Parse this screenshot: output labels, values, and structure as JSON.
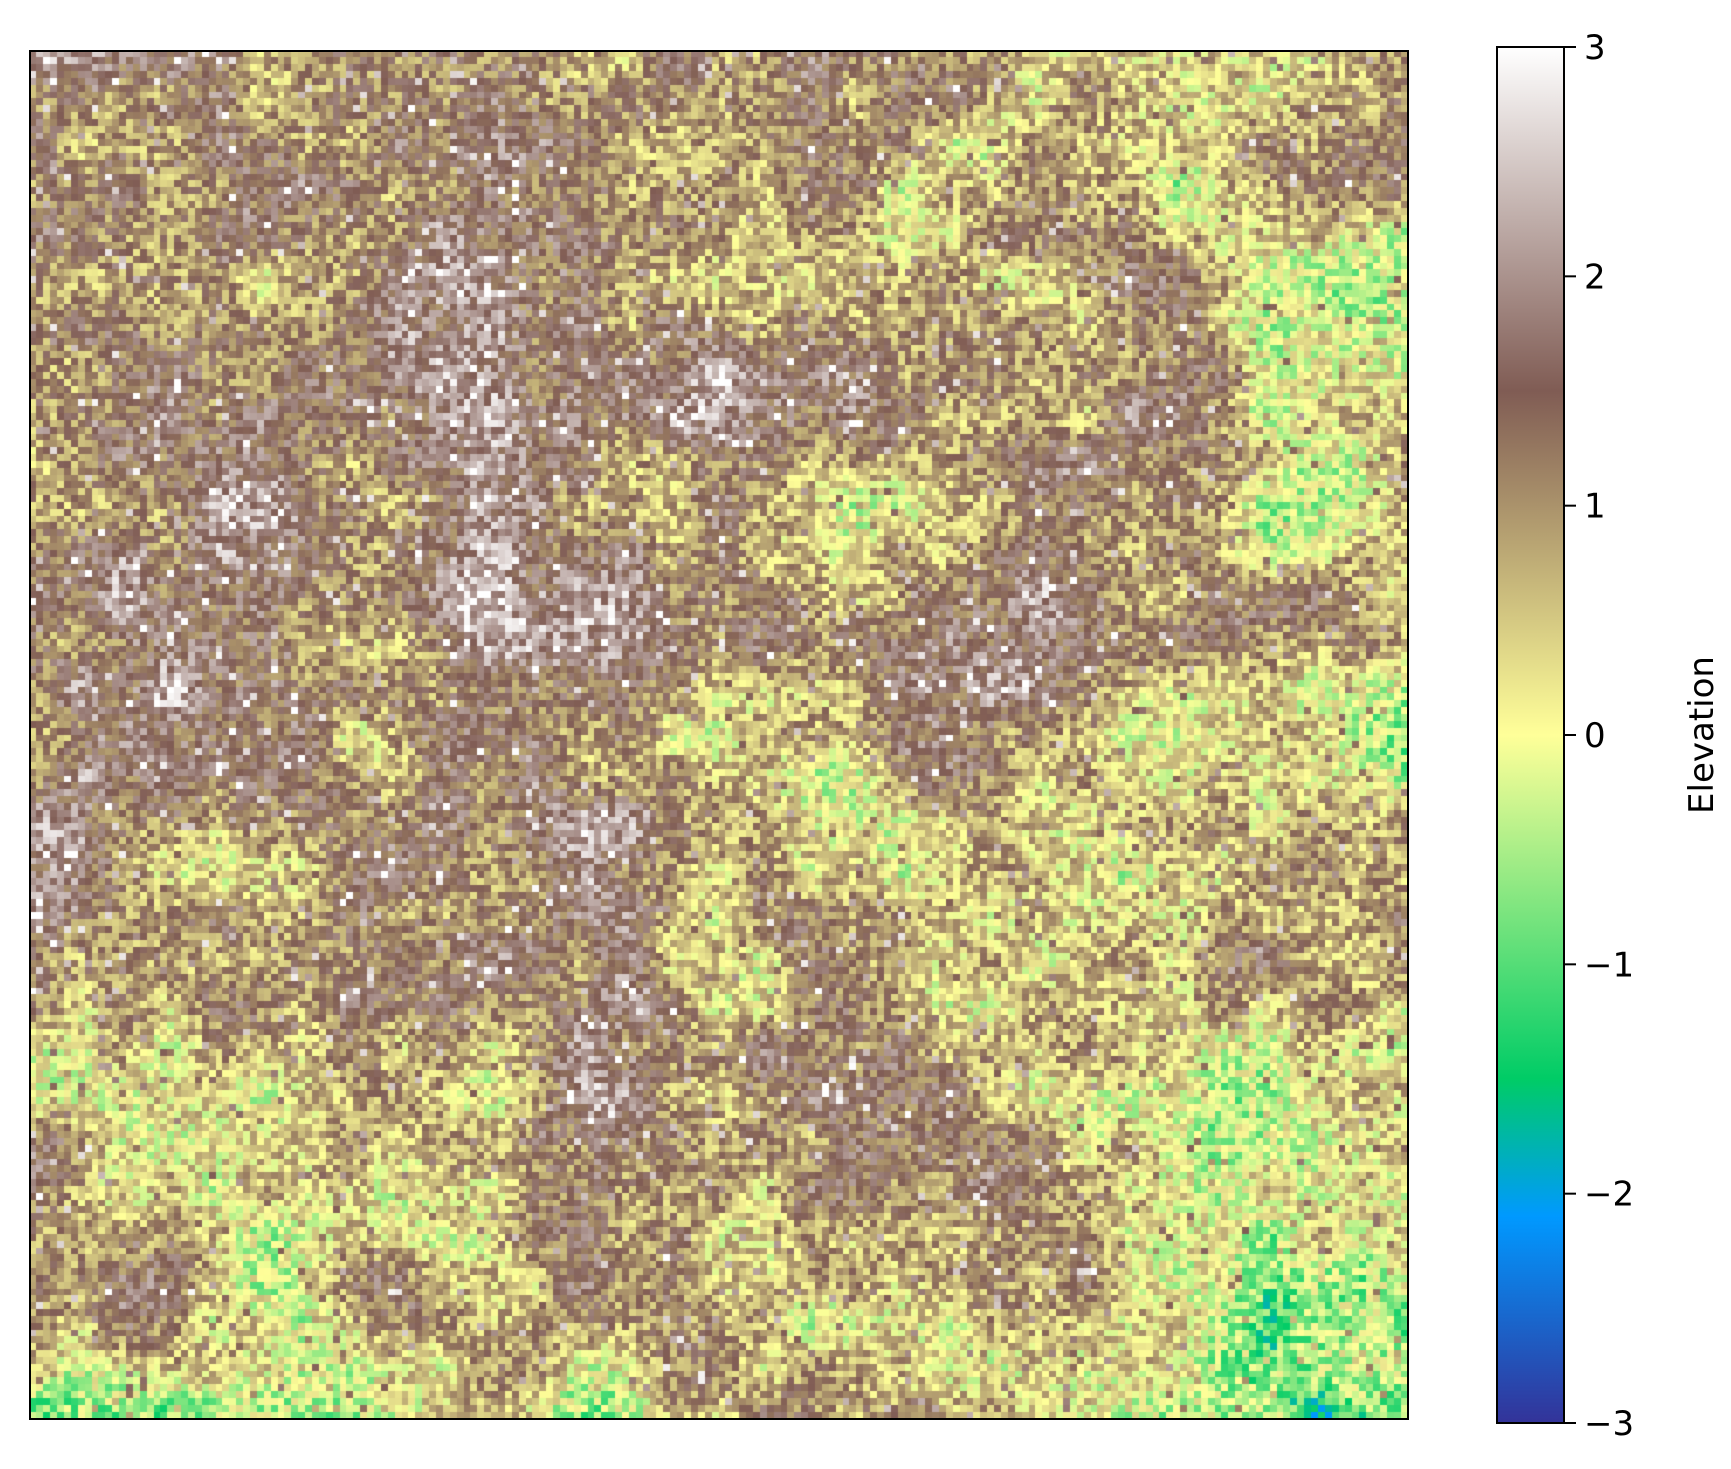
{
  "chart_data": {
    "type": "heatmap",
    "title": "",
    "xlabel": "",
    "ylabel": "",
    "colorbar": {
      "label": "Elevation",
      "colormap": "terrain",
      "vmin": -3,
      "vmax": 3,
      "ticks": [
        3,
        2,
        1,
        0,
        -1,
        -2,
        -3
      ],
      "tick_labels": [
        "3",
        "2",
        "1",
        "0",
        "−1",
        "−2",
        "−3"
      ]
    },
    "grid": {
      "rows": 200,
      "cols": 200,
      "note_values": "per-cell elevation field; predominantly positive (brown/white), with scattered low (green/blue) patches concentrated toward the right edge and the bottom"
    },
    "axes_ticks_visible": false,
    "grid_lines": false
  },
  "colors": {
    "terrain_stops": [
      [
        0.0,
        "#333399"
      ],
      [
        0.15,
        "#0099ff"
      ],
      [
        0.25,
        "#00cc66"
      ],
      [
        0.5,
        "#ffff99"
      ],
      [
        0.75,
        "#805c54"
      ],
      [
        1.0,
        "#ffffff"
      ]
    ],
    "frame": "#000000",
    "background": "#ffffff"
  }
}
